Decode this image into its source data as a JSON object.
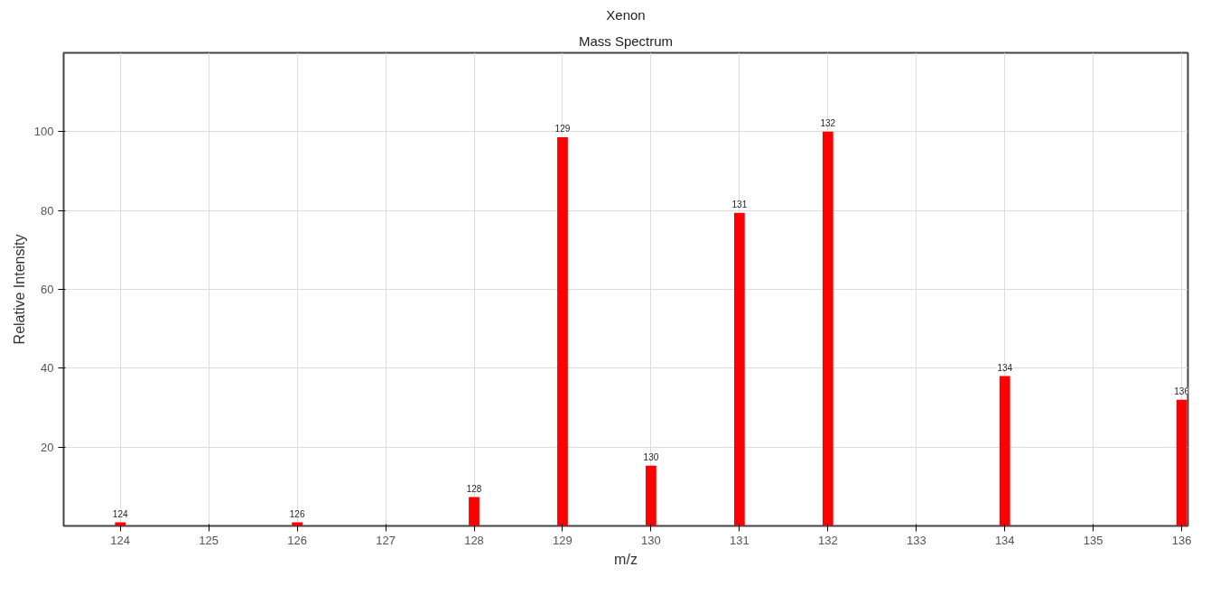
{
  "chart_data": {
    "type": "bar",
    "title": "Xenon",
    "subtitle": "Mass Spectrum",
    "xlabel": "m/z",
    "ylabel": "Relative Intensity",
    "x": [
      124,
      126,
      128,
      129,
      130,
      131,
      132,
      134,
      136
    ],
    "values": [
      0.9,
      0.9,
      7.3,
      98.6,
      15.3,
      79.4,
      100,
      38,
      32
    ],
    "annotations": [
      {
        "text": "124",
        "x": 124,
        "y": 0.9
      },
      {
        "text": "126",
        "x": 126,
        "y": 0.9
      },
      {
        "text": "128",
        "x": 128,
        "y": 7.3
      },
      {
        "text": "129",
        "x": 129,
        "y": 98.6
      },
      {
        "text": "130",
        "x": 130,
        "y": 15.3
      },
      {
        "text": "131",
        "x": 131,
        "y": 79.4
      },
      {
        "text": "132",
        "x": 132,
        "y": 100
      },
      {
        "text": "134",
        "x": 134,
        "y": 38
      },
      {
        "text": "136",
        "x": 136,
        "y": 32
      }
    ],
    "color": "#ff0000",
    "xlim": [
      123.36,
      136.07
    ],
    "ylim": [
      0,
      120
    ],
    "xticks": [
      124,
      125,
      126,
      127,
      128,
      129,
      130,
      131,
      132,
      133,
      134,
      135,
      136
    ],
    "yticks": [
      20,
      40,
      60,
      80,
      100
    ],
    "grid": true
  }
}
